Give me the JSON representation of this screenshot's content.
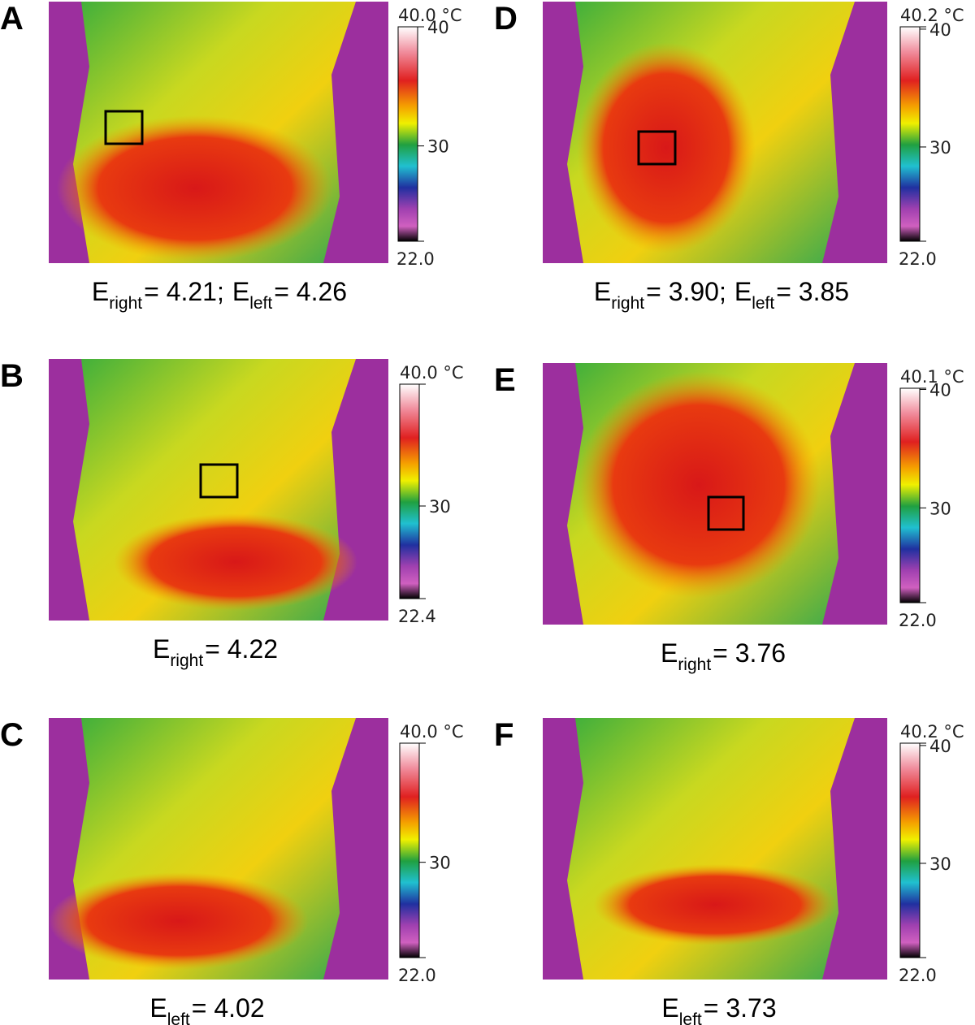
{
  "panels": [
    {
      "label": "A",
      "scale": {
        "max": {
          "value": 40,
          "label": "40.0 °C"
        },
        "min": {
          "value": 22,
          "label": "22.0"
        },
        "ticks": [
          40,
          30
        ]
      },
      "caption": [
        {
          "symbol": "E",
          "subscript": "right",
          "value": "= 4.21;"
        },
        {
          "symbol": "E",
          "subscript": "left",
          "value": "= 4.26"
        }
      ]
    },
    {
      "label": "B",
      "scale": {
        "max": {
          "value": 40,
          "label": "40.0 °C"
        },
        "min": {
          "value": 22.4,
          "label": "22.4"
        },
        "ticks": [
          30
        ]
      },
      "caption": [
        {
          "symbol": "E",
          "subscript": "right",
          "value": "= 4.22"
        }
      ]
    },
    {
      "label": "C",
      "scale": {
        "max": {
          "value": 40,
          "label": "40.0 °C"
        },
        "min": {
          "value": 22,
          "label": "22.0"
        },
        "ticks": [
          30
        ]
      },
      "caption": [
        {
          "symbol": "E",
          "subscript": "left",
          "value": "= 4.02"
        }
      ]
    },
    {
      "label": "D",
      "scale": {
        "max": {
          "value": 40.2,
          "label": "40.2 °C"
        },
        "min": {
          "value": 22,
          "label": "22.0"
        },
        "ticks": [
          40,
          30
        ]
      },
      "caption": [
        {
          "symbol": "E",
          "subscript": "right",
          "value": "= 3.90;"
        },
        {
          "symbol": "E",
          "subscript": "left",
          "value": "= 3.85"
        }
      ]
    },
    {
      "label": "E",
      "scale": {
        "max": {
          "value": 40.1,
          "label": "40.1 °C"
        },
        "min": {
          "value": 22,
          "label": "22.0"
        },
        "ticks": [
          40,
          30
        ]
      },
      "caption": [
        {
          "symbol": "E",
          "subscript": "right",
          "value": "= 3.76"
        }
      ]
    },
    {
      "label": "F",
      "scale": {
        "max": {
          "value": 40.2,
          "label": "40.2 °C"
        },
        "min": {
          "value": 22,
          "label": "22.0"
        },
        "ticks": [
          40,
          30
        ]
      },
      "caption": [
        {
          "symbol": "E",
          "subscript": "left",
          "value": "= 3.73"
        }
      ]
    }
  ]
}
